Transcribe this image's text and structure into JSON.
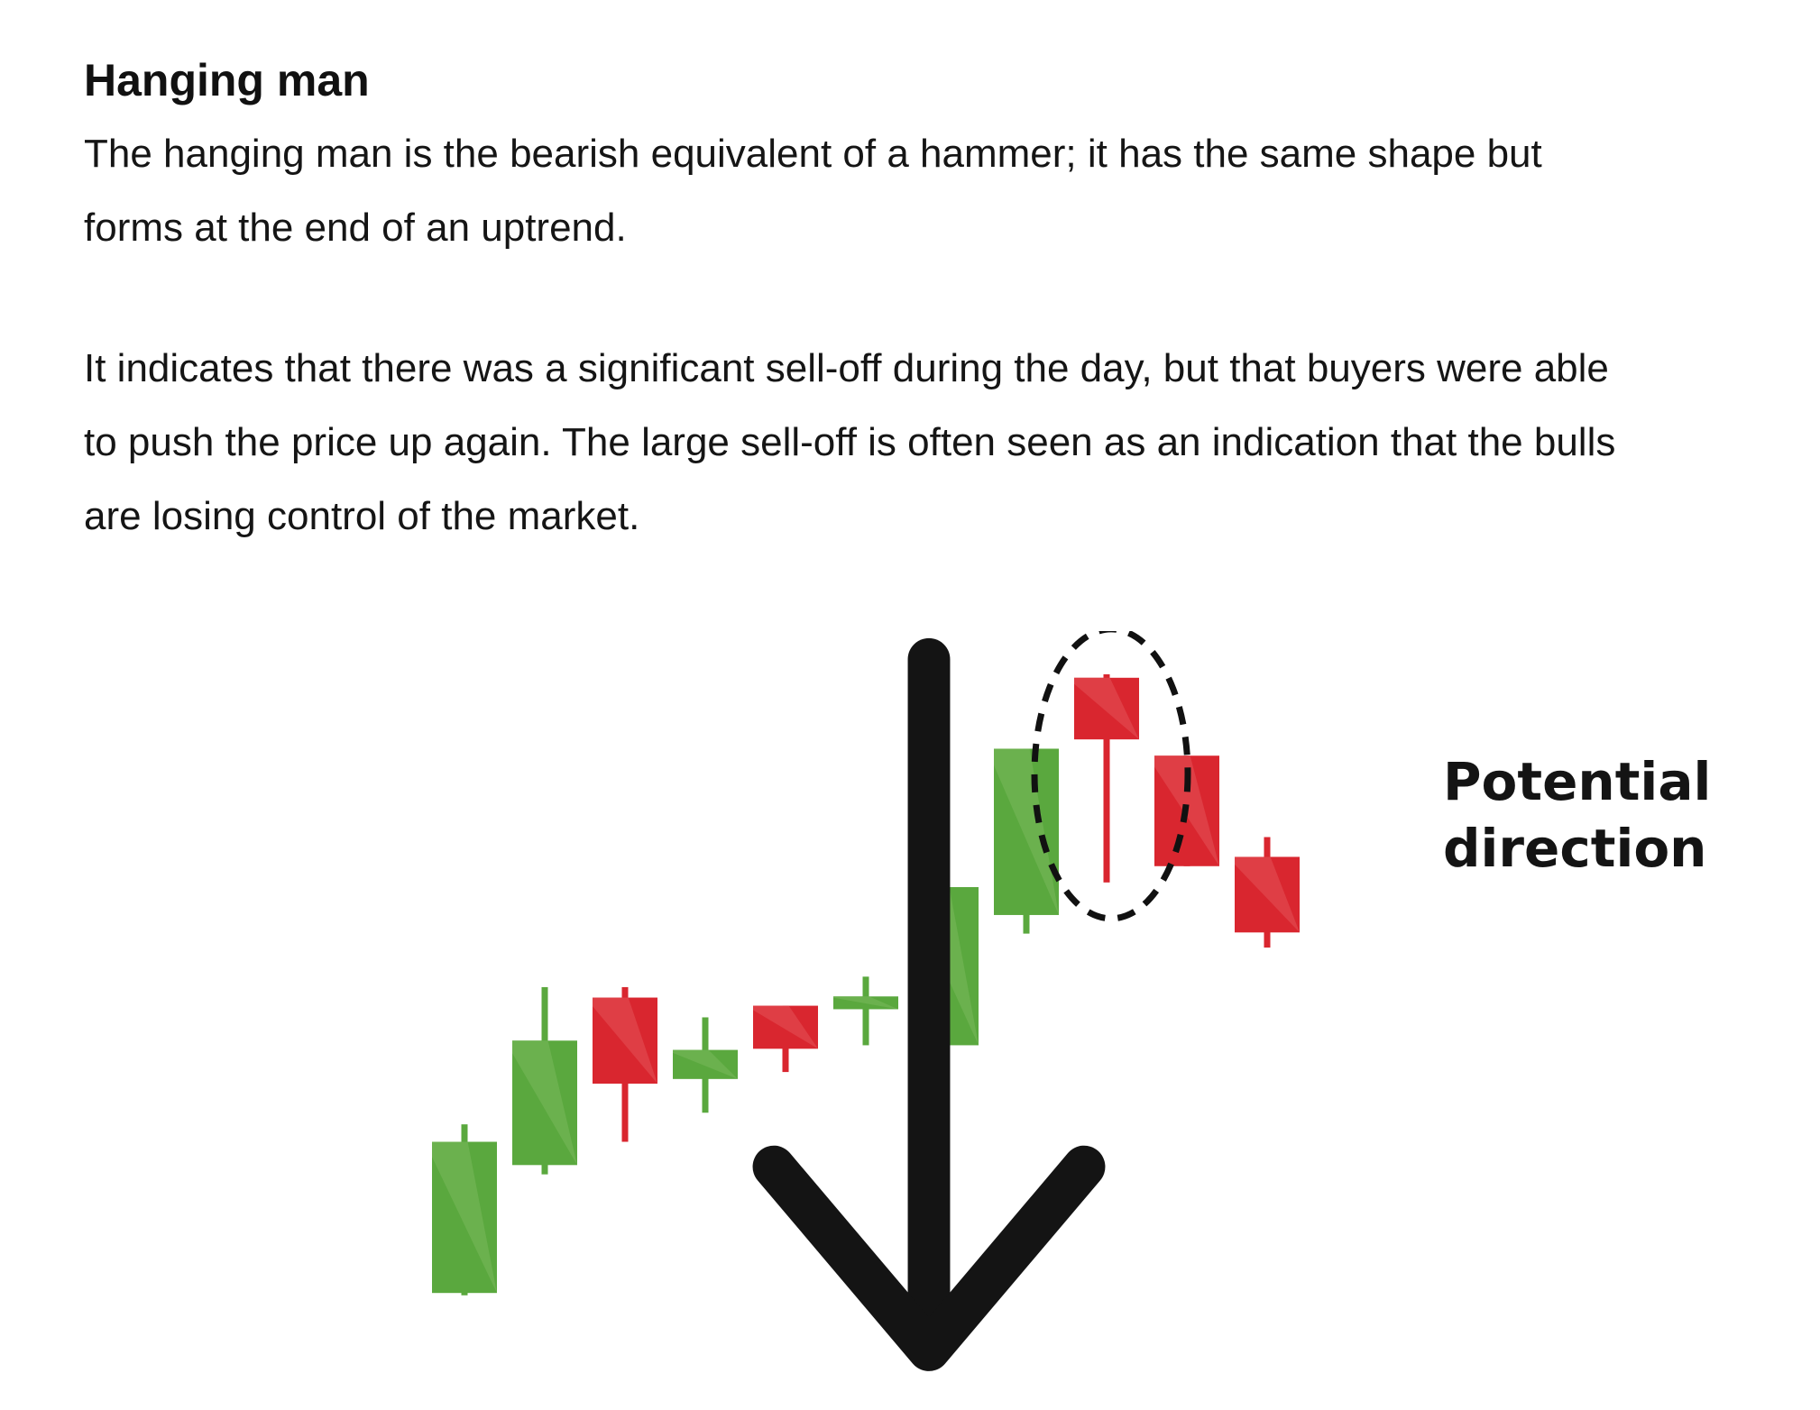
{
  "article": {
    "heading": "Hanging man",
    "para1_lines": [
      "The hanging man is the bearish equivalent of a hammer; it has the same shape but",
      "forms at the end of an uptrend."
    ],
    "para2_lines": [
      "It indicates that there was a significant sell-off during the day, but that buyers were able",
      "to push the price up again. The large sell-off is often seen as an indication that the bulls",
      "are losing control of the market."
    ]
  },
  "figure": {
    "label_line1": "Potential",
    "label_line2": "direction",
    "arrow_icon": "down-arrow-icon",
    "colors": {
      "bullish": "#5aa83e",
      "bullish_light": "#72b454",
      "bearish": "#d9262f",
      "bearish_light": "#e0474e",
      "highlight_ring": "#111111"
    },
    "candles": [
      {
        "direction": "up",
        "open": 2,
        "close": 15,
        "high": 16.5,
        "low": 1.8
      },
      {
        "direction": "up",
        "open": 13,
        "close": 23.7,
        "high": 28.3,
        "low": 12.2
      },
      {
        "direction": "down",
        "open": 27.4,
        "close": 20,
        "high": 28.3,
        "low": 15
      },
      {
        "direction": "up",
        "open": 20.4,
        "close": 22.9,
        "high": 25.7,
        "low": 17.5
      },
      {
        "direction": "down",
        "open": 26.7,
        "close": 23,
        "high": 26.7,
        "low": 21
      },
      {
        "direction": "up",
        "open": 26.4,
        "close": 27.5,
        "high": 29.2,
        "low": 23.3
      },
      {
        "direction": "up",
        "open": 23.3,
        "close": 36.9,
        "high": 36.9,
        "low": 20.8
      },
      {
        "direction": "up",
        "open": 34.5,
        "close": 48.8,
        "high": 48.8,
        "low": 32.9
      },
      {
        "direction": "down",
        "open": 54.9,
        "close": 49.6,
        "high": 55.2,
        "low": 37.3,
        "highlighted": true
      },
      {
        "direction": "down",
        "open": 48.2,
        "close": 38.7,
        "high": 48.2,
        "low": 38.7
      },
      {
        "direction": "down",
        "open": 39.5,
        "close": 33,
        "high": 41.2,
        "low": 31.7
      }
    ]
  }
}
